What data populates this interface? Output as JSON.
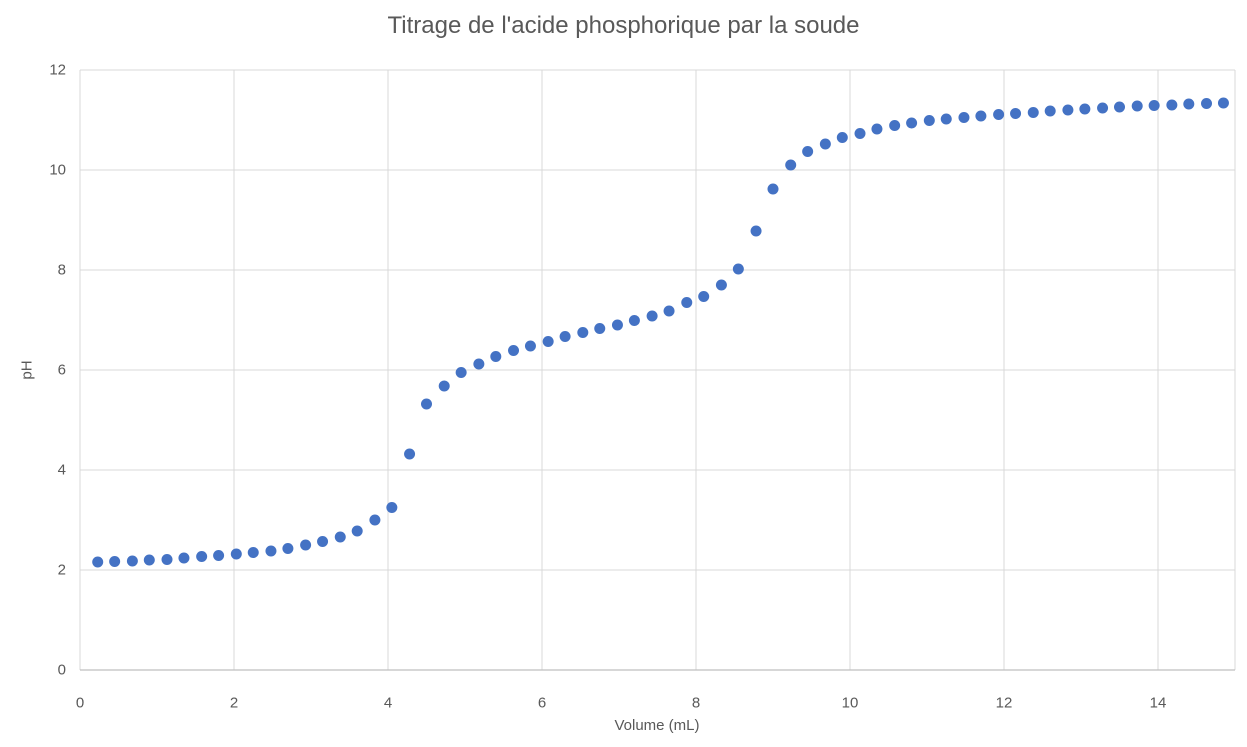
{
  "title": "Titrage de l'acide phosphorique par la soude",
  "colors": {
    "marker": "#4472C4",
    "gridline": "#D9D9D9",
    "axis_line": "#BFBFBF",
    "text": "#595959",
    "background": "#FFFFFF"
  },
  "chart_data": {
    "type": "scatter",
    "title": "Titrage de l'acide phosphorique par la soude",
    "xlabel": "Volume (mL)",
    "ylabel": "pH",
    "xlim": [
      0,
      15
    ],
    "ylim": [
      0,
      12
    ],
    "x_ticks": [
      0,
      2,
      4,
      6,
      8,
      10,
      12,
      14
    ],
    "y_ticks": [
      0,
      2,
      4,
      6,
      8,
      10,
      12
    ],
    "grid": true,
    "legend": false,
    "series": [
      {
        "name": "pH",
        "x": [
          0.23,
          0.45,
          0.68,
          0.9,
          1.13,
          1.35,
          1.58,
          1.8,
          2.03,
          2.25,
          2.48,
          2.7,
          2.93,
          3.15,
          3.38,
          3.6,
          3.83,
          4.05,
          4.28,
          4.5,
          4.73,
          4.95,
          5.18,
          5.4,
          5.63,
          5.85,
          6.08,
          6.3,
          6.53,
          6.75,
          6.98,
          7.2,
          7.43,
          7.65,
          7.88,
          8.1,
          8.33,
          8.55,
          8.78,
          9.0,
          9.23,
          9.45,
          9.68,
          9.9,
          10.13,
          10.35,
          10.58,
          10.8,
          11.03,
          11.25,
          11.48,
          11.7,
          11.93,
          12.15,
          12.38,
          12.6,
          12.83,
          13.05,
          13.28,
          13.5,
          13.73,
          13.95,
          14.18,
          14.4,
          14.63,
          14.85
        ],
        "y": [
          2.16,
          2.17,
          2.18,
          2.2,
          2.21,
          2.24,
          2.27,
          2.29,
          2.32,
          2.35,
          2.38,
          2.43,
          2.5,
          2.57,
          2.66,
          2.78,
          3.0,
          3.25,
          4.32,
          5.32,
          5.68,
          5.95,
          6.12,
          6.27,
          6.39,
          6.48,
          6.57,
          6.67,
          6.75,
          6.83,
          6.9,
          6.99,
          7.08,
          7.18,
          7.35,
          7.47,
          7.7,
          8.02,
          8.78,
          9.62,
          10.1,
          10.37,
          10.52,
          10.65,
          10.73,
          10.82,
          10.89,
          10.94,
          10.99,
          11.02,
          11.05,
          11.08,
          11.11,
          11.13,
          11.15,
          11.18,
          11.2,
          11.22,
          11.24,
          11.26,
          11.28,
          11.29,
          11.3,
          11.32,
          11.33,
          11.34
        ]
      }
    ]
  }
}
